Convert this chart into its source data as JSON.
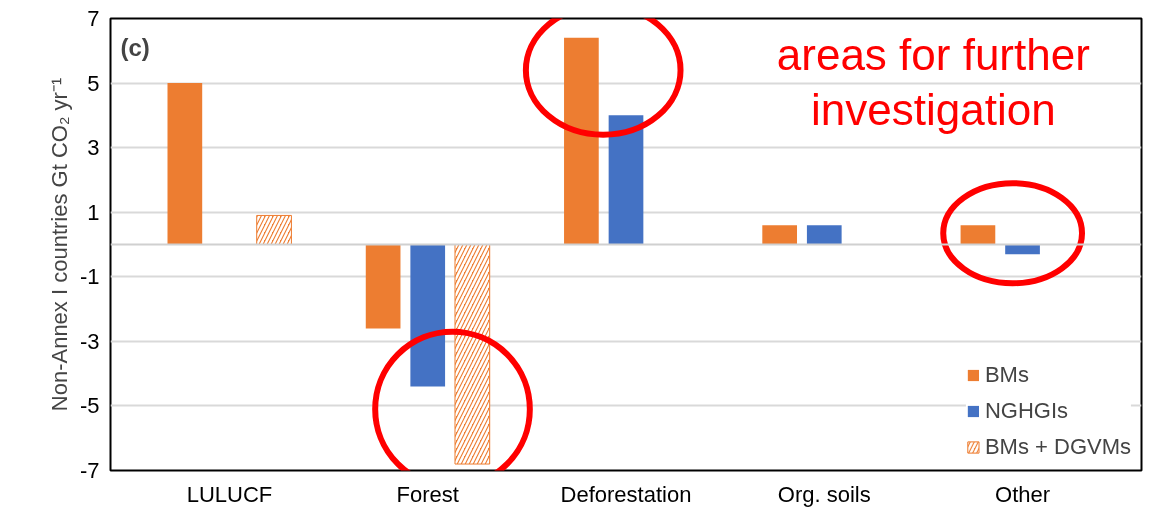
{
  "chart_data": {
    "type": "bar",
    "ylabel": "Non-Annex I countries Gt CO₂ yr⁻¹",
    "categories": [
      "LULUCF",
      "Forest",
      "Deforestation",
      "Org. soils",
      "Other"
    ],
    "series": [
      {
        "name": "BMs",
        "color": "#ed7d31",
        "values": [
          5.0,
          -2.6,
          6.4,
          0.6,
          0.6
        ]
      },
      {
        "name": "NGHGIs",
        "color": "#4472c4",
        "values": [
          null,
          -4.4,
          4.0,
          0.6,
          -0.3
        ]
      },
      {
        "name": "BMs + DGVMs",
        "color": "#ed7d31",
        "values": [
          0.9,
          -6.8,
          null,
          null,
          null
        ]
      }
    ],
    "ylim": [
      -7,
      7
    ],
    "yticks": [
      -7,
      -5,
      -3,
      -1,
      1,
      3,
      5,
      7
    ],
    "grid": "y",
    "legend": "bottom right",
    "ref_lines": [
      {
        "axis": "y",
        "value": 0,
        "color": "#d0d0d0"
      }
    ],
    "annotations": [
      "(c)",
      "areas for further investigation"
    ]
  }
}
